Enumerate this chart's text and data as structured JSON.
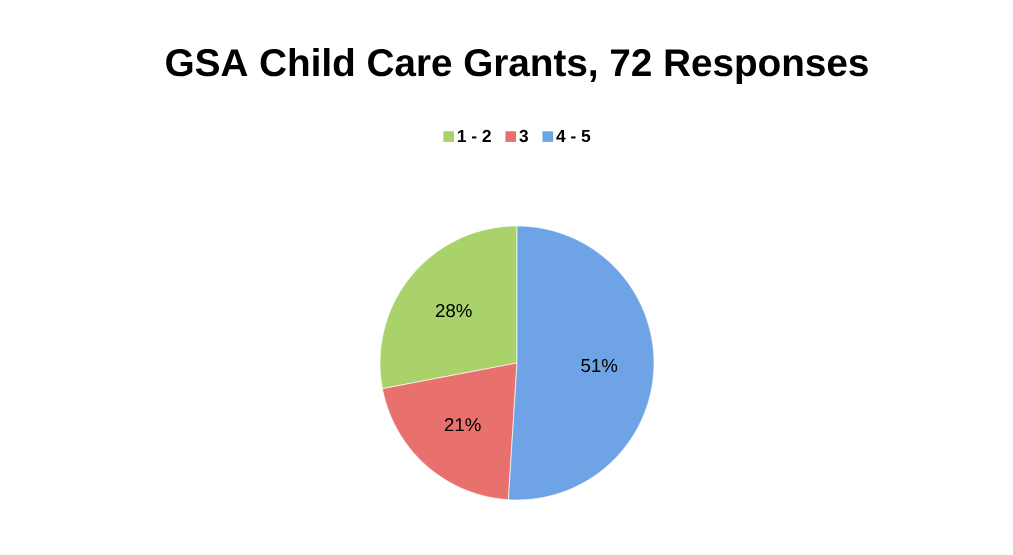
{
  "chart_data": {
    "type": "pie",
    "title": "GSA Child Care Grants, 72 Responses",
    "categories": [
      "1 - 2",
      "3",
      "4 - 5"
    ],
    "values": [
      28,
      21,
      51
    ],
    "colors": [
      "#a9d26a",
      "#e9716d",
      "#6ea4e6"
    ],
    "value_labels": [
      "28%",
      "21%",
      "51%"
    ],
    "legend": "top"
  }
}
